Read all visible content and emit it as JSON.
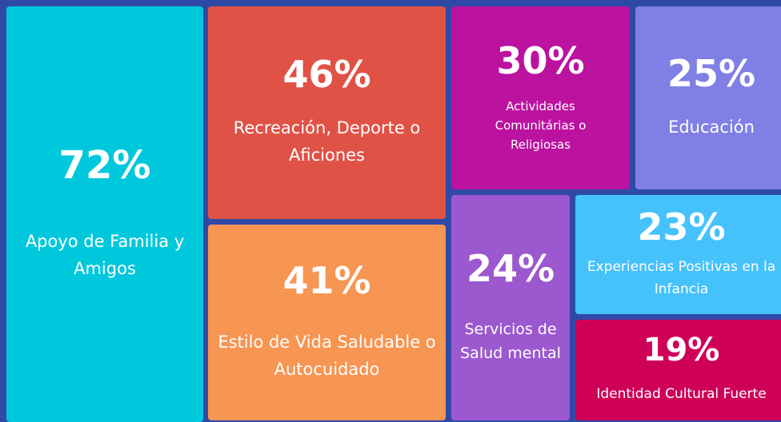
{
  "chart_data": {
    "type": "treemap",
    "categories": [
      "Apoyo de Familia y Amigos",
      "Recreación, Deporte o Aficiones",
      "Estilo de Vida Saludable o Autocuidado",
      "Actividades Comunitárias o Religiosas",
      "Educación",
      "Servicios de Salud mental",
      "Experiencias Positivas en la Infancia",
      "Identidad Cultural Fuerte"
    ],
    "values": [
      72,
      46,
      41,
      30,
      25,
      24,
      23,
      19
    ],
    "value_labels": [
      "72%",
      "46%",
      "41%",
      "30%",
      "25%",
      "24%",
      "23%",
      "19%"
    ],
    "colors": [
      "#00c8dc",
      "#e05246",
      "#f79552",
      "#bb12a0",
      "#7f7fe6",
      "#9c58cf",
      "#46c2fb",
      "#cf0058"
    ]
  }
}
